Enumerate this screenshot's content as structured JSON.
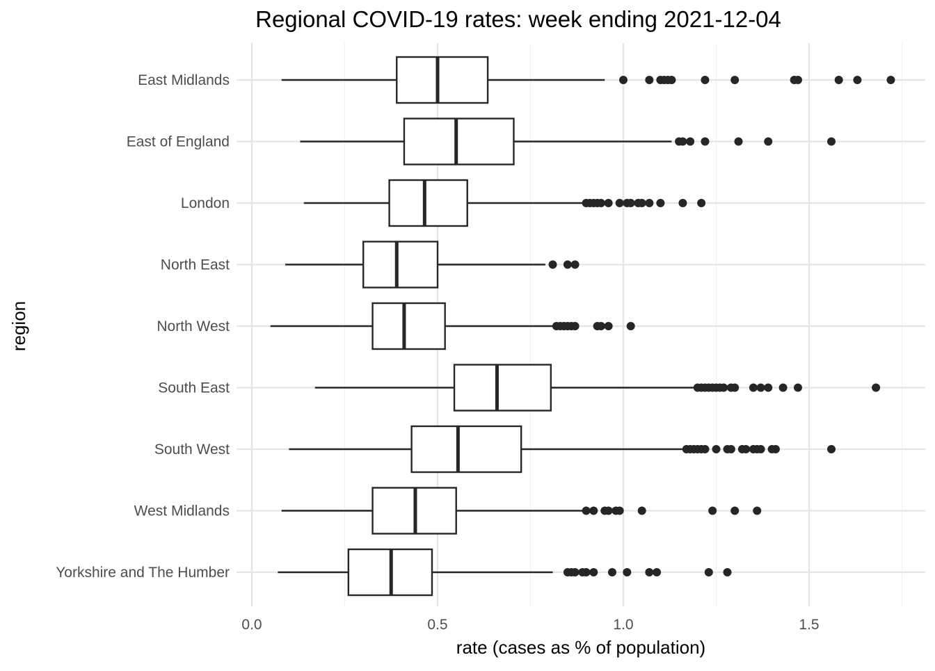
{
  "chart_data": {
    "type": "boxplot",
    "orientation": "horizontal",
    "title": "Regional COVID-19 rates: week ending 2021-12-04",
    "xlabel": "rate (cases as % of population)",
    "ylabel": "region",
    "xlim": [
      -0.05,
      1.8
    ],
    "x_ticks": [
      0.0,
      0.5,
      1.0,
      1.5
    ],
    "x_tick_labels": [
      "0.0",
      "0.5",
      "1.0",
      "1.5"
    ],
    "grid": true,
    "legend": "none",
    "colors": {
      "box_fill": "#ffffff",
      "box_stroke": "#262626",
      "grid": "#e5e5e5"
    },
    "series": [
      {
        "name": "Yorkshire and The Humber",
        "whisker_low": 0.07,
        "q1": 0.26,
        "median": 0.375,
        "q3": 0.485,
        "whisker_high": 0.81,
        "outliers": [
          0.85,
          0.86,
          0.87,
          0.89,
          0.9,
          0.92,
          0.97,
          1.01,
          1.07,
          1.09,
          1.23,
          1.28
        ]
      },
      {
        "name": "West Midlands",
        "whisker_low": 0.08,
        "q1": 0.325,
        "median": 0.44,
        "q3": 0.55,
        "whisker_high": 0.89,
        "outliers": [
          0.9,
          0.92,
          0.95,
          0.96,
          0.98,
          0.99,
          1.05,
          1.24,
          1.3,
          1.36
        ]
      },
      {
        "name": "South West",
        "whisker_low": 0.1,
        "q1": 0.43,
        "median": 0.555,
        "q3": 0.725,
        "whisker_high": 1.16,
        "outliers": [
          1.17,
          1.18,
          1.19,
          1.2,
          1.21,
          1.22,
          1.25,
          1.28,
          1.29,
          1.32,
          1.33,
          1.35,
          1.36,
          1.37,
          1.4,
          1.41,
          1.56
        ]
      },
      {
        "name": "South East",
        "whisker_low": 0.17,
        "q1": 0.545,
        "median": 0.66,
        "q3": 0.805,
        "whisker_high": 1.19,
        "outliers": [
          1.2,
          1.21,
          1.22,
          1.23,
          1.24,
          1.25,
          1.26,
          1.27,
          1.29,
          1.3,
          1.35,
          1.37,
          1.39,
          1.43,
          1.47,
          1.68
        ]
      },
      {
        "name": "North West",
        "whisker_low": 0.05,
        "q1": 0.325,
        "median": 0.41,
        "q3": 0.52,
        "whisker_high": 0.81,
        "outliers": [
          0.82,
          0.83,
          0.84,
          0.85,
          0.86,
          0.87,
          0.93,
          0.94,
          0.96,
          1.02
        ]
      },
      {
        "name": "North East",
        "whisker_low": 0.09,
        "q1": 0.3,
        "median": 0.39,
        "q3": 0.5,
        "whisker_high": 0.79,
        "outliers": [
          0.81,
          0.85,
          0.87
        ]
      },
      {
        "name": "London",
        "whisker_low": 0.14,
        "q1": 0.37,
        "median": 0.465,
        "q3": 0.58,
        "whisker_high": 0.89,
        "outliers": [
          0.9,
          0.91,
          0.92,
          0.93,
          0.94,
          0.96,
          0.99,
          1.01,
          1.02,
          1.04,
          1.05,
          1.07,
          1.1,
          1.16,
          1.21
        ]
      },
      {
        "name": "East of England",
        "whisker_low": 0.13,
        "q1": 0.41,
        "median": 0.55,
        "q3": 0.705,
        "whisker_high": 1.13,
        "outliers": [
          1.15,
          1.16,
          1.18,
          1.22,
          1.31,
          1.39,
          1.56
        ]
      },
      {
        "name": "East Midlands",
        "whisker_low": 0.08,
        "q1": 0.39,
        "median": 0.5,
        "q3": 0.635,
        "whisker_high": 0.95,
        "outliers": [
          1.0,
          1.07,
          1.1,
          1.11,
          1.12,
          1.13,
          1.22,
          1.3,
          1.46,
          1.47,
          1.58,
          1.63,
          1.72
        ]
      }
    ]
  }
}
